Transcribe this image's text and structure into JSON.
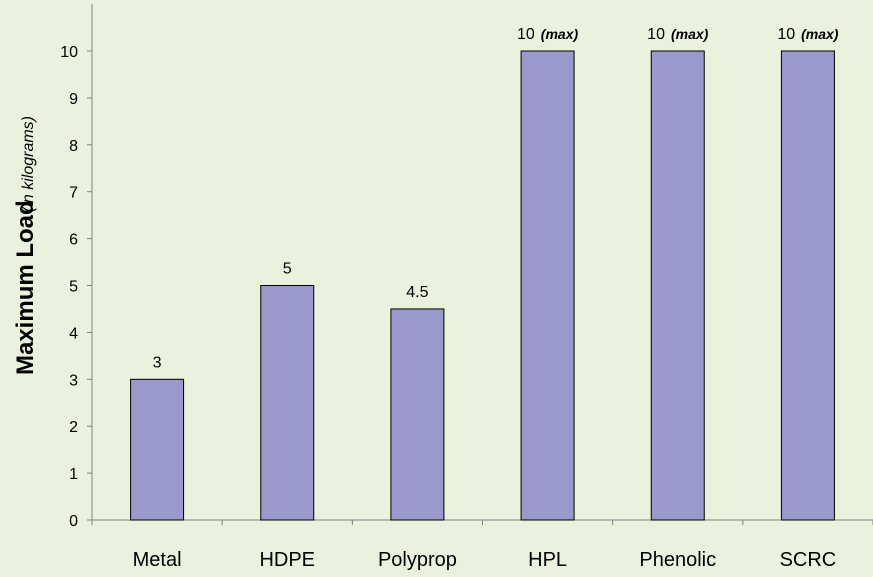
{
  "chart_data": {
    "type": "bar",
    "categories": [
      "Metal",
      "HDPE",
      "Polyprop",
      "HPL",
      "Phenolic",
      "SCRC"
    ],
    "values": [
      3,
      5,
      4.5,
      10,
      10,
      10
    ],
    "data_labels": [
      "3",
      "5",
      "4.5",
      "10",
      "10",
      "10"
    ],
    "data_label_suffixes": [
      "",
      "",
      "",
      "(max)",
      "(max)",
      "(max)"
    ],
    "ylabel": "Maximum Load",
    "ylabel_unit": "(in kilograms)",
    "ylim": [
      0,
      10.5
    ],
    "yticks": [
      0,
      1,
      2,
      3,
      4,
      5,
      6,
      7,
      8,
      9,
      10
    ],
    "grid": false,
    "legend": "none",
    "colors": {
      "bar_fill": "#9999cc",
      "bar_stroke": "#000000",
      "background": "#eaf1dd",
      "axis": "#7f7f7f"
    }
  }
}
